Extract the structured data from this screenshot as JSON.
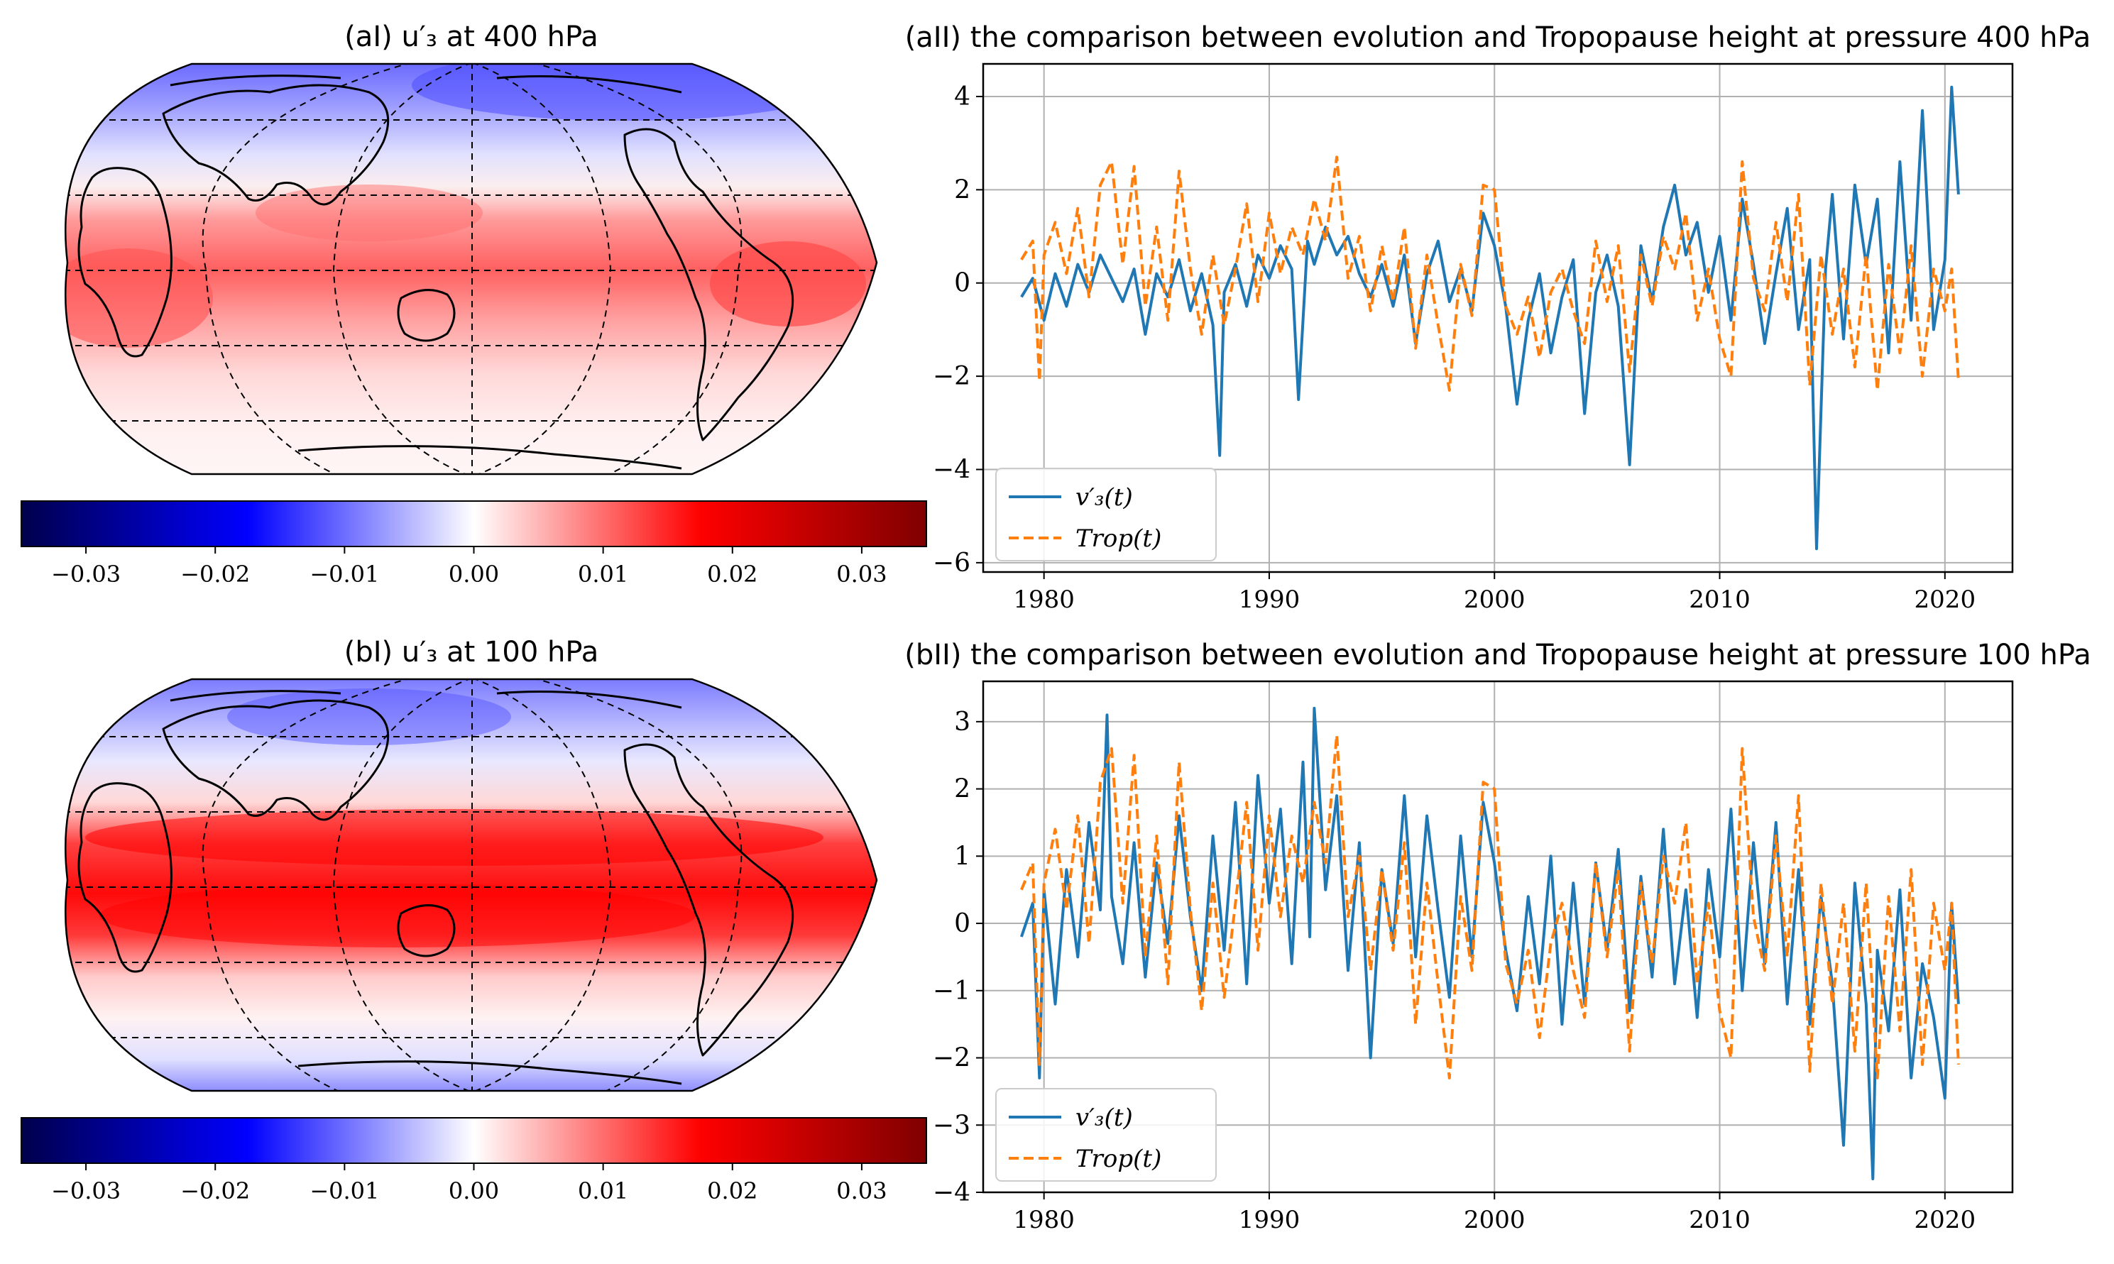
{
  "colors": {
    "series_v": "#1f77b4",
    "series_trop": "#ff7f0e",
    "grid": "#b0b0b0",
    "map_blue": "#0000ff",
    "map_red": "#ff0000",
    "map_dark_blue": "#00004c",
    "map_dark_red": "#7f0000"
  },
  "panels": {
    "aI": {
      "title": "(aI) u′₃ at 400 hPa"
    },
    "bI": {
      "title": "(bI) u′₃ at 100 hPa"
    }
  },
  "colorbar": {
    "ticks": [
      "−0.03",
      "−0.02",
      "−0.01",
      "0.00",
      "0.01",
      "0.02",
      "0.03"
    ],
    "tick_values": [
      -0.03,
      -0.02,
      -0.01,
      0.0,
      0.01,
      0.02,
      0.03
    ],
    "range": [
      -0.035,
      0.035
    ],
    "cmap": "seismic"
  },
  "chart_data": [
    {
      "id": "aII",
      "type": "line",
      "title": "(aII) the comparison between evolution and Tropopause height at pressure 400 hPa",
      "xlabel": "",
      "ylabel": "",
      "xlim": [
        1977.3,
        2023.0
      ],
      "ylim": [
        -6.2,
        4.7
      ],
      "xticks": [
        1980,
        1990,
        2000,
        2010,
        2020
      ],
      "yticks": [
        -6,
        -4,
        -2,
        0,
        2,
        4
      ],
      "ytick_labels": [
        "−6",
        "−4",
        "−2",
        "0",
        "2",
        "4"
      ],
      "grid": true,
      "legend": {
        "position": "lower-left",
        "entries": [
          "v′₃(t)",
          "Trop(t)"
        ]
      },
      "series": [
        {
          "name": "v′₃(t)",
          "style": "solid",
          "color": "#1f77b4",
          "x": [
            1979.0,
            1979.5,
            1980.0,
            1980.5,
            1981.0,
            1981.5,
            1982.0,
            1982.5,
            1983.0,
            1983.5,
            1984.0,
            1984.5,
            1985.0,
            1985.5,
            1986.0,
            1986.5,
            1987.0,
            1987.5,
            1987.8,
            1988.0,
            1988.5,
            1989.0,
            1989.5,
            1990.0,
            1990.5,
            1991.0,
            1991.3,
            1991.7,
            1992.0,
            1992.5,
            1993.0,
            1993.5,
            1994.0,
            1994.5,
            1995.0,
            1995.5,
            1996.0,
            1996.5,
            1997.0,
            1997.5,
            1998.0,
            1998.5,
            1999.0,
            1999.5,
            2000.0,
            2000.5,
            2001.0,
            2001.5,
            2002.0,
            2002.5,
            2003.0,
            2003.5,
            2004.0,
            2004.5,
            2005.0,
            2005.5,
            2006.0,
            2006.5,
            2007.0,
            2007.5,
            2008.0,
            2008.5,
            2009.0,
            2009.5,
            2010.0,
            2010.5,
            2011.0,
            2011.5,
            2012.0,
            2012.5,
            2013.0,
            2013.5,
            2014.0,
            2014.3,
            2014.7,
            2015.0,
            2015.5,
            2016.0,
            2016.5,
            2017.0,
            2017.5,
            2018.0,
            2018.5,
            2019.0,
            2019.5,
            2020.0,
            2020.3,
            2020.6
          ],
          "y": [
            -0.3,
            0.1,
            -0.8,
            0.2,
            -0.5,
            0.4,
            -0.2,
            0.6,
            0.1,
            -0.4,
            0.3,
            -1.1,
            0.2,
            -0.3,
            0.5,
            -0.6,
            0.2,
            -0.9,
            -3.7,
            -0.2,
            0.4,
            -0.5,
            0.6,
            0.1,
            0.8,
            0.3,
            -2.5,
            0.9,
            0.4,
            1.2,
            0.6,
            1.0,
            0.2,
            -0.3,
            0.4,
            -0.5,
            0.6,
            -1.3,
            0.2,
            0.9,
            -0.4,
            0.3,
            -0.6,
            1.5,
            0.8,
            -0.5,
            -2.6,
            -0.8,
            0.2,
            -1.5,
            -0.3,
            0.5,
            -2.8,
            -0.2,
            0.6,
            -0.5,
            -3.9,
            0.8,
            -0.4,
            1.2,
            2.1,
            0.6,
            1.3,
            -0.2,
            1.0,
            -0.8,
            1.8,
            0.4,
            -1.3,
            0.2,
            1.6,
            -1.0,
            0.5,
            -5.7,
            0.3,
            1.9,
            -1.2,
            2.1,
            0.4,
            1.8,
            -1.5,
            2.6,
            -0.8,
            3.7,
            -1.0,
            0.5,
            4.2,
            1.9
          ]
        },
        {
          "name": "Trop(t)",
          "style": "dashed",
          "color": "#ff7f0e",
          "x": [
            1979.0,
            1979.5,
            1979.8,
            1980.0,
            1980.5,
            1981.0,
            1981.5,
            1982.0,
            1982.5,
            1983.0,
            1983.5,
            1984.0,
            1984.5,
            1985.0,
            1985.5,
            1986.0,
            1986.5,
            1987.0,
            1987.5,
            1988.0,
            1988.5,
            1989.0,
            1989.5,
            1990.0,
            1990.5,
            1991.0,
            1991.5,
            1992.0,
            1992.5,
            1993.0,
            1993.5,
            1994.0,
            1994.5,
            1995.0,
            1995.5,
            1996.0,
            1996.5,
            1997.0,
            1997.5,
            1998.0,
            1998.5,
            1999.0,
            1999.5,
            2000.0,
            2000.5,
            2001.0,
            2001.5,
            2002.0,
            2002.5,
            2003.0,
            2003.5,
            2004.0,
            2004.5,
            2005.0,
            2005.5,
            2006.0,
            2006.5,
            2007.0,
            2007.5,
            2008.0,
            2008.5,
            2009.0,
            2009.5,
            2010.0,
            2010.5,
            2011.0,
            2011.5,
            2012.0,
            2012.5,
            2013.0,
            2013.5,
            2014.0,
            2014.5,
            2015.0,
            2015.5,
            2016.0,
            2016.5,
            2017.0,
            2017.5,
            2018.0,
            2018.5,
            2019.0,
            2019.5,
            2020.0,
            2020.3,
            2020.6
          ],
          "y": [
            0.5,
            0.9,
            -2.1,
            0.6,
            1.3,
            0.2,
            1.6,
            -0.3,
            2.1,
            2.6,
            0.4,
            2.5,
            -0.5,
            1.2,
            -0.8,
            2.4,
            0.3,
            -1.1,
            0.6,
            -0.9,
            0.3,
            1.7,
            -0.4,
            1.5,
            0.2,
            1.2,
            0.6,
            1.8,
            0.9,
            2.7,
            0.1,
            1.0,
            -0.6,
            0.8,
            -0.4,
            1.2,
            -1.4,
            0.6,
            -0.9,
            -2.3,
            0.4,
            -0.7,
            2.1,
            2.0,
            -0.5,
            -1.1,
            -0.3,
            -1.6,
            -0.2,
            0.3,
            -0.6,
            -1.3,
            0.9,
            -0.4,
            0.8,
            -1.9,
            0.6,
            -0.5,
            1.0,
            0.3,
            1.5,
            -0.8,
            0.3,
            -1.2,
            -2.0,
            2.6,
            0.1,
            -0.6,
            1.3,
            -0.4,
            1.9,
            -2.2,
            0.6,
            -1.1,
            0.3,
            -1.8,
            0.6,
            -2.3,
            0.4,
            -1.5,
            0.8,
            -2.0,
            0.3,
            -0.6,
            0.3,
            -2.1
          ]
        }
      ]
    },
    {
      "id": "bII",
      "type": "line",
      "title": "(bII) the comparison between evolution and Tropopause height at pressure 100 hPa",
      "xlabel": "",
      "ylabel": "",
      "xlim": [
        1977.3,
        2023.0
      ],
      "ylim": [
        -4.0,
        3.6
      ],
      "xticks": [
        1980,
        1990,
        2000,
        2010,
        2020
      ],
      "yticks": [
        -4,
        -3,
        -2,
        -1,
        0,
        1,
        2,
        3
      ],
      "ytick_labels": [
        "−4",
        "−3",
        "−2",
        "−1",
        "0",
        "1",
        "2",
        "3"
      ],
      "grid": true,
      "legend": {
        "position": "lower-left",
        "entries": [
          "v′₃(t)",
          "Trop(t)"
        ]
      },
      "series": [
        {
          "name": "v′₃(t)",
          "style": "solid",
          "color": "#1f77b4",
          "x": [
            1979.0,
            1979.5,
            1979.8,
            1980.0,
            1980.5,
            1981.0,
            1981.5,
            1982.0,
            1982.5,
            1982.8,
            1983.0,
            1983.5,
            1984.0,
            1984.5,
            1985.0,
            1985.5,
            1986.0,
            1986.5,
            1987.0,
            1987.5,
            1988.0,
            1988.5,
            1989.0,
            1989.5,
            1990.0,
            1990.5,
            1991.0,
            1991.5,
            1991.8,
            1992.0,
            1992.5,
            1993.0,
            1993.5,
            1994.0,
            1994.5,
            1995.0,
            1995.5,
            1996.0,
            1996.5,
            1997.0,
            1997.5,
            1998.0,
            1998.5,
            1999.0,
            1999.5,
            2000.0,
            2000.5,
            2001.0,
            2001.5,
            2002.0,
            2002.5,
            2003.0,
            2003.5,
            2004.0,
            2004.5,
            2005.0,
            2005.5,
            2006.0,
            2006.5,
            2007.0,
            2007.5,
            2008.0,
            2008.5,
            2009.0,
            2009.5,
            2010.0,
            2010.5,
            2011.0,
            2011.5,
            2012.0,
            2012.5,
            2013.0,
            2013.5,
            2014.0,
            2014.5,
            2015.0,
            2015.5,
            2016.0,
            2016.5,
            2016.8,
            2017.0,
            2017.5,
            2018.0,
            2018.5,
            2019.0,
            2019.5,
            2020.0,
            2020.3,
            2020.6
          ],
          "y": [
            -0.2,
            0.3,
            -2.3,
            0.5,
            -1.2,
            0.8,
            -0.5,
            1.5,
            0.2,
            3.1,
            0.4,
            -0.6,
            1.2,
            -0.8,
            0.9,
            -0.3,
            1.6,
            0.1,
            -1.0,
            1.3,
            -0.4,
            1.8,
            -0.9,
            2.2,
            0.3,
            1.7,
            -0.6,
            2.4,
            -0.2,
            3.2,
            0.5,
            1.9,
            -0.7,
            1.2,
            -2.0,
            0.8,
            -0.3,
            1.9,
            -0.5,
            1.6,
            0.2,
            -1.1,
            1.3,
            -0.5,
            1.8,
            0.9,
            -0.4,
            -1.3,
            0.4,
            -0.9,
            1.0,
            -1.5,
            0.6,
            -1.2,
            0.9,
            -0.4,
            1.1,
            -1.3,
            0.7,
            -0.8,
            1.4,
            -0.9,
            0.5,
            -1.4,
            0.8,
            -0.5,
            1.7,
            -1.0,
            1.2,
            -0.6,
            1.5,
            -1.2,
            0.8,
            -1.5,
            0.4,
            -0.9,
            -3.3,
            0.6,
            -1.2,
            -3.8,
            -0.4,
            -1.6,
            0.5,
            -2.3,
            -0.6,
            -1.4,
            -2.6,
            0.3,
            -1.2
          ]
        },
        {
          "name": "Trop(t)",
          "style": "dashed",
          "color": "#ff7f0e",
          "x": [
            1979.0,
            1979.5,
            1979.8,
            1980.0,
            1980.5,
            1981.0,
            1981.5,
            1982.0,
            1982.5,
            1983.0,
            1983.5,
            1984.0,
            1984.5,
            1985.0,
            1985.5,
            1986.0,
            1986.5,
            1987.0,
            1987.5,
            1988.0,
            1988.5,
            1989.0,
            1989.5,
            1990.0,
            1990.5,
            1991.0,
            1991.5,
            1992.0,
            1992.5,
            1993.0,
            1993.5,
            1994.0,
            1994.5,
            1995.0,
            1995.5,
            1996.0,
            1996.5,
            1997.0,
            1997.5,
            1998.0,
            1998.5,
            1999.0,
            1999.5,
            2000.0,
            2000.5,
            2001.0,
            2001.5,
            2002.0,
            2002.5,
            2003.0,
            2003.5,
            2004.0,
            2004.5,
            2005.0,
            2005.5,
            2006.0,
            2006.5,
            2007.0,
            2007.5,
            2008.0,
            2008.5,
            2009.0,
            2009.5,
            2010.0,
            2010.5,
            2011.0,
            2011.5,
            2012.0,
            2012.5,
            2013.0,
            2013.5,
            2014.0,
            2014.5,
            2015.0,
            2015.5,
            2016.0,
            2016.5,
            2017.0,
            2017.5,
            2018.0,
            2018.5,
            2019.0,
            2019.5,
            2020.0,
            2020.3,
            2020.6
          ],
          "y": [
            0.5,
            0.9,
            -2.1,
            0.6,
            1.4,
            0.2,
            1.6,
            -0.3,
            2.1,
            2.6,
            0.3,
            2.5,
            -0.5,
            1.3,
            -0.9,
            2.4,
            0.2,
            -1.3,
            0.6,
            -1.1,
            0.3,
            1.8,
            -0.4,
            1.6,
            0.1,
            1.3,
            0.6,
            1.8,
            0.9,
            2.8,
            0.1,
            1.0,
            -0.7,
            0.8,
            -0.4,
            1.2,
            -1.5,
            0.6,
            -0.9,
            -2.3,
            0.4,
            -0.7,
            2.1,
            2.0,
            -0.6,
            -1.2,
            -0.4,
            -1.7,
            -0.3,
            0.3,
            -0.7,
            -1.4,
            0.9,
            -0.5,
            0.8,
            -1.9,
            0.6,
            -0.6,
            1.0,
            0.3,
            1.5,
            -0.9,
            0.3,
            -1.3,
            -2.0,
            2.6,
            0.1,
            -0.7,
            1.3,
            -0.5,
            1.9,
            -2.2,
            0.6,
            -1.2,
            0.3,
            -1.9,
            0.6,
            -2.3,
            0.4,
            -1.6,
            0.8,
            -2.1,
            0.3,
            -0.7,
            0.3,
            -2.1
          ]
        }
      ]
    }
  ]
}
